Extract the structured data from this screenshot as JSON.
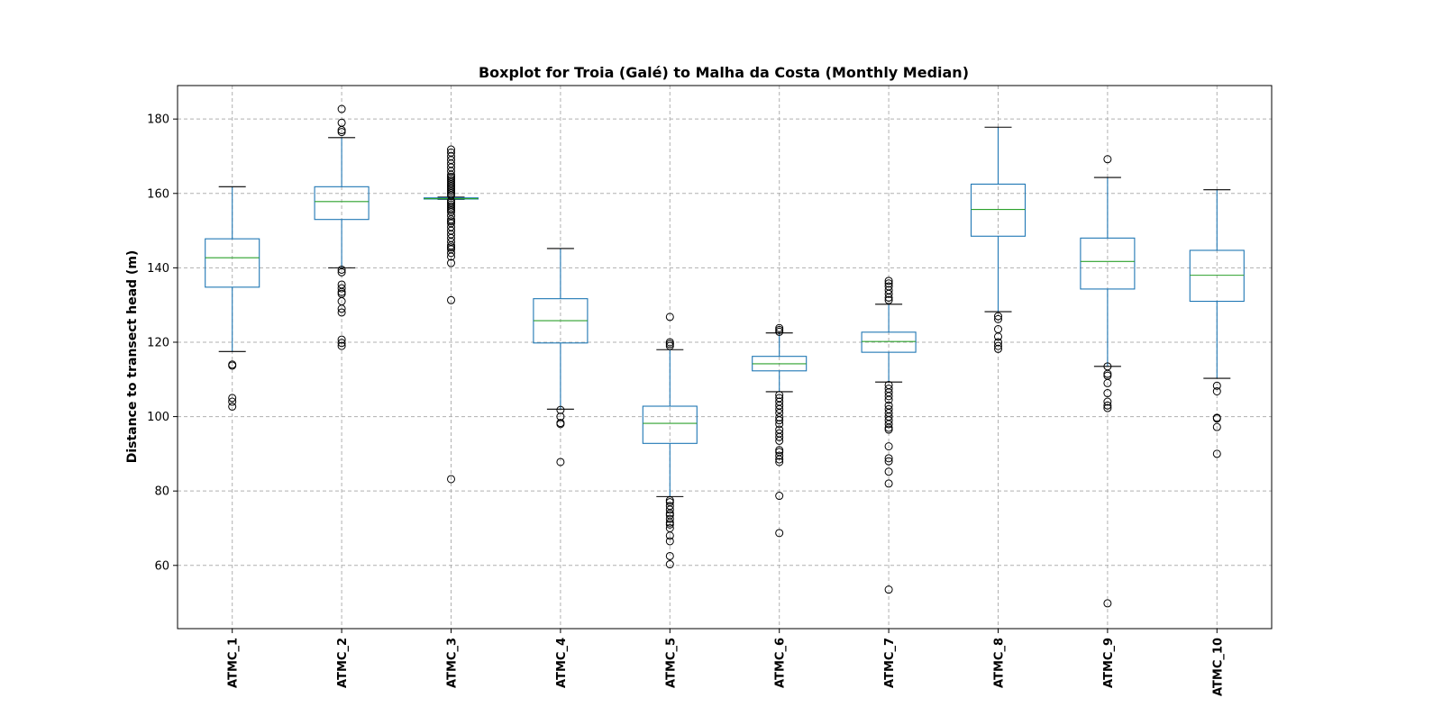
{
  "chart_data": {
    "type": "boxplot",
    "title": "Boxplot for Troia (Galé) to Malha da Costa (Monthly Median)",
    "xlabel": "",
    "ylabel": "Distance to transect head (m)",
    "ylim": [
      43,
      189
    ],
    "yticks": [
      60,
      80,
      100,
      120,
      140,
      160,
      180
    ],
    "grid": true,
    "colors": {
      "box": "#1f77b4",
      "median": "#2ca02c",
      "whisker": "#1f77b4",
      "cap": "#000000",
      "flier": "#000000",
      "grid": "#b0b0b0"
    },
    "categories": [
      "ATMC_1",
      "ATMC_2",
      "ATMC_3",
      "ATMC_4",
      "ATMC_5",
      "ATMC_6",
      "ATMC_7",
      "ATMC_8",
      "ATMC_9",
      "ATMC_10"
    ],
    "boxes": [
      {
        "name": "ATMC_1",
        "whislo": 117.5,
        "q1": 134.8,
        "med": 142.7,
        "q3": 147.8,
        "whishi": 161.8,
        "fliers": [
          114.0,
          113.7,
          105.0,
          104.0,
          102.7
        ]
      },
      {
        "name": "ATMC_2",
        "whislo": 140.0,
        "q1": 153.0,
        "med": 157.8,
        "q3": 161.8,
        "whishi": 175.0,
        "fliers": [
          182.7,
          179.0,
          177.0,
          176.5,
          139.5,
          138.8,
          135.5,
          134.5,
          133.5,
          133.0,
          131.0,
          129.0,
          128.0,
          120.7,
          119.8,
          119.0
        ]
      },
      {
        "name": "ATMC_3",
        "whislo": 158.4,
        "q1": 158.5,
        "med": 158.6,
        "q3": 158.8,
        "whishi": 159.0,
        "fliers": [
          171.8,
          171.0,
          170.0,
          169.0,
          168.0,
          167.0,
          166.0,
          165.0,
          164.5,
          164.0,
          163.5,
          163.0,
          162.5,
          162.0,
          161.5,
          161.0,
          160.5,
          160.0,
          159.5,
          158.0,
          157.5,
          157.0,
          156.5,
          156.0,
          155.5,
          155.0,
          154.0,
          153.0,
          152.5,
          152.0,
          151.0,
          150.0,
          149.0,
          148.0,
          147.0,
          146.0,
          145.5,
          145.0,
          144.0,
          143.0,
          141.3,
          131.3,
          83.2
        ]
      },
      {
        "name": "ATMC_4",
        "whislo": 102.0,
        "q1": 119.8,
        "med": 125.8,
        "q3": 131.7,
        "whishi": 145.2,
        "fliers": [
          101.8,
          100.0,
          98.3,
          98.0,
          87.8
        ]
      },
      {
        "name": "ATMC_5",
        "whislo": 78.5,
        "q1": 92.8,
        "med": 98.2,
        "q3": 102.8,
        "whishi": 118.0,
        "fliers": [
          126.8,
          120.0,
          119.5,
          119.0,
          77.5,
          77.0,
          76.0,
          75.0,
          74.0,
          73.5,
          72.5,
          71.5,
          71.0,
          70.0,
          68.0,
          66.5,
          62.5,
          60.3
        ]
      },
      {
        "name": "ATMC_6",
        "whislo": 106.7,
        "q1": 112.3,
        "med": 114.2,
        "q3": 116.2,
        "whishi": 122.5,
        "fliers": [
          123.8,
          123.3,
          122.8,
          105.8,
          105.0,
          104.0,
          103.0,
          102.0,
          101.0,
          99.8,
          99.0,
          98.0,
          96.5,
          95.5,
          94.5,
          93.5,
          91.0,
          90.5,
          89.5,
          88.5,
          87.8,
          78.7,
          68.7
        ]
      },
      {
        "name": "ATMC_7",
        "whislo": 109.3,
        "q1": 117.3,
        "med": 120.2,
        "q3": 122.7,
        "whishi": 130.2,
        "fliers": [
          136.5,
          135.8,
          135.0,
          134.0,
          133.0,
          132.0,
          131.3,
          108.5,
          107.5,
          106.5,
          105.5,
          104.5,
          103.0,
          102.0,
          101.0,
          100.0,
          99.0,
          98.0,
          97.0,
          96.5,
          92.0,
          88.8,
          88.0,
          85.2,
          82.0,
          53.5
        ]
      },
      {
        "name": "ATMC_8",
        "whislo": 128.2,
        "q1": 148.5,
        "med": 155.7,
        "q3": 162.5,
        "whishi": 177.8,
        "fliers": [
          127.0,
          126.2,
          123.5,
          121.5,
          120.0,
          119.0,
          118.2
        ]
      },
      {
        "name": "ATMC_9",
        "whislo": 113.5,
        "q1": 134.3,
        "med": 141.7,
        "q3": 148.0,
        "whishi": 164.3,
        "fliers": [
          169.2,
          113.5,
          111.5,
          111.0,
          109.0,
          106.3,
          104.0,
          103.0,
          102.3,
          49.8
        ]
      },
      {
        "name": "ATMC_10",
        "whislo": 110.3,
        "q1": 131.0,
        "med": 138.0,
        "q3": 144.7,
        "whishi": 161.0,
        "fliers": [
          108.3,
          106.8,
          99.7,
          99.5,
          97.2,
          90.0
        ]
      }
    ]
  }
}
